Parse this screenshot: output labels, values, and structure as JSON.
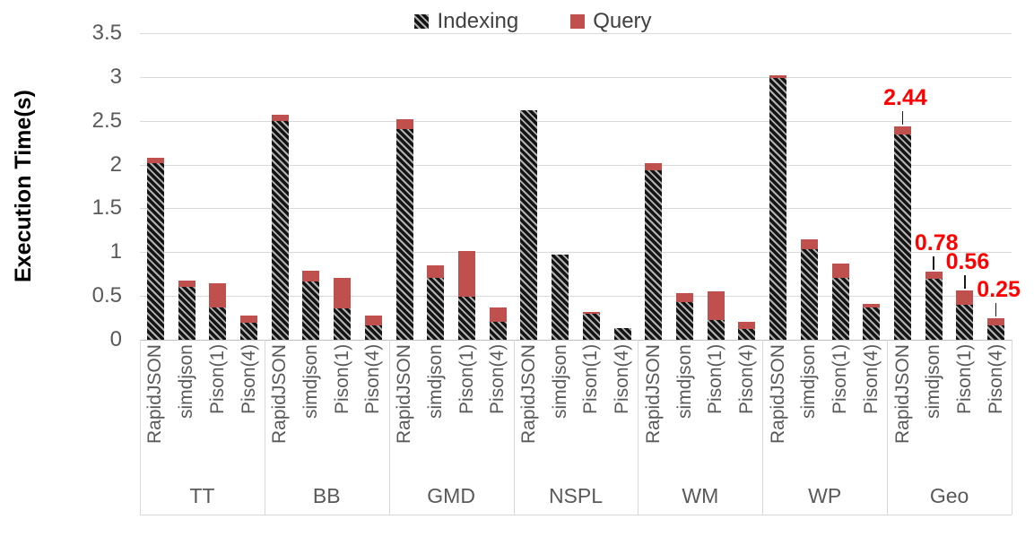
{
  "chart_data": {
    "type": "bar",
    "stacked": true,
    "ylabel": "Execution Time(s)",
    "ylim": [
      0,
      3.5
    ],
    "yticks": [
      "0",
      "0.5",
      "1",
      "1.5",
      "2",
      "2.5",
      "3",
      "3.5"
    ],
    "grid": true,
    "legend_position": "top-center",
    "groups": [
      "TT",
      "BB",
      "GMD",
      "NSPL",
      "WM",
      "WP",
      "Geo"
    ],
    "bar_labels": [
      "RapidJSON",
      "simdjson",
      "Pison(1)",
      "Pison(4)"
    ],
    "legend": [
      {
        "name": "Indexing",
        "swatch": "hatched-diagonal"
      },
      {
        "name": "Query",
        "swatch": "solid-red"
      }
    ],
    "series": [
      {
        "name": "Indexing",
        "values": [
          [
            2.02,
            0.6,
            0.37,
            0.19
          ],
          [
            2.5,
            0.67,
            0.36,
            0.16
          ],
          [
            2.4,
            0.71,
            0.49,
            0.2
          ],
          [
            2.62,
            0.97,
            0.3,
            0.13
          ],
          [
            1.93,
            0.43,
            0.23,
            0.12
          ],
          [
            2.99,
            1.03,
            0.71,
            0.37
          ],
          [
            2.34,
            0.7,
            0.4,
            0.16
          ]
        ]
      },
      {
        "name": "Query",
        "values": [
          [
            0.06,
            0.08,
            0.27,
            0.09
          ],
          [
            0.07,
            0.12,
            0.35,
            0.12
          ],
          [
            0.12,
            0.14,
            0.52,
            0.17
          ],
          [
            0.0,
            0.0,
            0.02,
            0.0
          ],
          [
            0.09,
            0.1,
            0.32,
            0.08
          ],
          [
            0.03,
            0.12,
            0.16,
            0.04
          ],
          [
            0.1,
            0.08,
            0.16,
            0.09
          ]
        ]
      }
    ],
    "annotations": [
      {
        "group": "Geo",
        "bar": "RapidJSON",
        "text": "2.44"
      },
      {
        "group": "Geo",
        "bar": "simdjson",
        "text": "0.78"
      },
      {
        "group": "Geo",
        "bar": "Pison(1)",
        "text": "0.56"
      },
      {
        "group": "Geo",
        "bar": "Pison(4)",
        "text": "0.25"
      }
    ],
    "colors": {
      "query": "#C0504D",
      "hatch_dark": "#141414",
      "hatch_light": "#b3b3b3",
      "annotation": "#FF0000",
      "axis_text": "#595959",
      "legend_text": "#404040",
      "gridline": "#d9d9d9"
    }
  }
}
